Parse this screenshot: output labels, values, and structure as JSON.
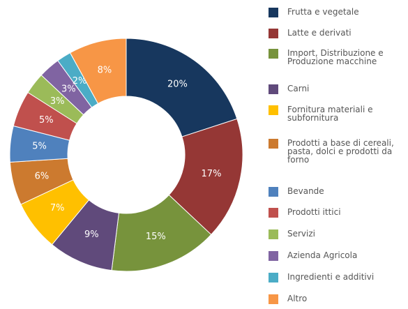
{
  "chart_data": {
    "type": "donut",
    "categories": [
      "Frutta e vegetale",
      "Latte e derivati",
      "Import, Distribuzione e Produzione macchine",
      "Carni",
      "Fornitura materiali e subfornitura",
      "Prodotti a base di cereali, pasta, dolci e prodotti da forno",
      "Bevande",
      "Prodotti ittici",
      "Servizi",
      "Azienda Agricola",
      "Ingredienti e additivi",
      "Altro"
    ],
    "values": [
      20,
      17,
      15,
      9,
      7,
      6,
      5,
      5,
      3,
      3,
      2,
      8
    ],
    "value_labels": [
      "20%",
      "17%",
      "15%",
      "9%",
      "7%",
      "6%",
      "5%",
      "5%",
      "3%",
      "3%",
      "2%",
      "8%"
    ],
    "colors": [
      "#17375e",
      "#953735",
      "#77933c",
      "#604a7b",
      "#ffc000",
      "#cc7a2f",
      "#4f81bd",
      "#c0504d",
      "#9bbb59",
      "#8064a2",
      "#4bacc6",
      "#f79646"
    ],
    "legend": "right"
  }
}
